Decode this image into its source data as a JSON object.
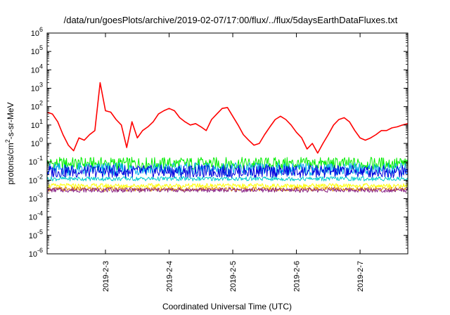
{
  "chart_data": {
    "type": "line",
    "title": "/data/run/goesPlots/archive/2019-02-07/17:00/flux/../flux/5daysEarthDataFluxes.txt",
    "xlabel": "Coordinated Universal Time (UTC)",
    "ylabel_parts": {
      "pre": "protons/cm",
      "sup": "2",
      "post": "-s-sr-MeV"
    },
    "yscale": "log",
    "ylim": [
      1e-06,
      1000000
    ],
    "xlim": [
      "2019-02-02 02:00",
      "2019-02-07 18:00"
    ],
    "grid": false,
    "legend": false,
    "x_ticks": [
      "2019-2-3",
      "2019-2-4",
      "2019-2-5",
      "2019-2-6",
      "2019-2-7"
    ],
    "y_ticks": [
      {
        "value": 1e-06,
        "base": "10",
        "exp": "-6"
      },
      {
        "value": 1e-05,
        "base": "10",
        "exp": "-5"
      },
      {
        "value": 0.0001,
        "base": "10",
        "exp": "-4"
      },
      {
        "value": 0.001,
        "base": "10",
        "exp": "-3"
      },
      {
        "value": 0.01,
        "base": "10",
        "exp": "-2"
      },
      {
        "value": 0.1,
        "base": "10",
        "exp": "-1"
      },
      {
        "value": 1,
        "base": "10",
        "exp": "0"
      },
      {
        "value": 10,
        "base": "10",
        "exp": "1"
      },
      {
        "value": 100,
        "base": "10",
        "exp": "2"
      },
      {
        "value": 1000,
        "base": "10",
        "exp": "3"
      },
      {
        "value": 10000,
        "base": "10",
        "exp": "4"
      },
      {
        "value": 100000,
        "base": "10",
        "exp": "5"
      },
      {
        "value": 1000000,
        "base": "10",
        "exp": "6"
      }
    ],
    "series": [
      {
        "color": "#ff0000",
        "x": [
          "2019-02-02 02:00",
          "2019-02-02 04:00",
          "2019-02-02 06:00",
          "2019-02-02 08:00",
          "2019-02-02 10:00",
          "2019-02-02 12:00",
          "2019-02-02 14:00",
          "2019-02-02 16:00",
          "2019-02-02 18:00",
          "2019-02-02 20:00",
          "2019-02-02 22:00",
          "2019-02-03 00:00",
          "2019-02-03 02:00",
          "2019-02-03 04:00",
          "2019-02-03 06:00",
          "2019-02-03 08:00",
          "2019-02-03 10:00",
          "2019-02-03 12:00",
          "2019-02-03 14:00",
          "2019-02-03 16:00",
          "2019-02-03 18:00",
          "2019-02-03 20:00",
          "2019-02-03 22:00",
          "2019-02-04 00:00",
          "2019-02-04 02:00",
          "2019-02-04 04:00",
          "2019-02-04 06:00",
          "2019-02-04 08:00",
          "2019-02-04 10:00",
          "2019-02-04 12:00",
          "2019-02-04 14:00",
          "2019-02-04 16:00",
          "2019-02-04 18:00",
          "2019-02-04 20:00",
          "2019-02-04 22:00",
          "2019-02-05 00:00",
          "2019-02-05 02:00",
          "2019-02-05 04:00",
          "2019-02-05 06:00",
          "2019-02-05 08:00",
          "2019-02-05 10:00",
          "2019-02-05 12:00",
          "2019-02-05 14:00",
          "2019-02-05 16:00",
          "2019-02-05 18:00",
          "2019-02-05 20:00",
          "2019-02-05 22:00",
          "2019-02-06 00:00",
          "2019-02-06 02:00",
          "2019-02-06 04:00",
          "2019-02-06 06:00",
          "2019-02-06 08:00",
          "2019-02-06 10:00",
          "2019-02-06 12:00",
          "2019-02-06 14:00",
          "2019-02-06 16:00",
          "2019-02-06 18:00",
          "2019-02-06 20:00",
          "2019-02-06 22:00",
          "2019-02-07 00:00",
          "2019-02-07 02:00",
          "2019-02-07 04:00",
          "2019-02-07 06:00",
          "2019-02-07 08:00",
          "2019-02-07 10:00",
          "2019-02-07 12:00",
          "2019-02-07 14:00",
          "2019-02-07 16:00",
          "2019-02-07 18:00"
        ],
        "y": [
          50,
          40,
          15,
          3,
          0.8,
          0.4,
          2,
          1.5,
          3,
          5,
          2000,
          60,
          50,
          20,
          10,
          0.6,
          15,
          2,
          5,
          8,
          15,
          40,
          60,
          80,
          60,
          25,
          15,
          10,
          12,
          8,
          5,
          20,
          40,
          80,
          90,
          30,
          10,
          3,
          1.5,
          0.8,
          1,
          3,
          8,
          20,
          30,
          20,
          10,
          4,
          2,
          0.5,
          1,
          0.3,
          1,
          3,
          10,
          20,
          25,
          15,
          5,
          2,
          1.5,
          2,
          3,
          5,
          5,
          7,
          8,
          10,
          12
        ]
      },
      {
        "color": "#00ee00",
        "x": [
          "2019-02-02 02:00",
          "2019-02-07 18:00"
        ],
        "y": [
          0.08,
          0.08
        ]
      },
      {
        "color": "#00aaee",
        "x": [
          "2019-02-02 02:00",
          "2019-02-07 18:00"
        ],
        "y": [
          0.04,
          0.04
        ]
      },
      {
        "color": "#0000dd",
        "x": [
          "2019-02-02 02:00",
          "2019-02-07 18:00"
        ],
        "y": [
          0.03,
          0.03
        ]
      },
      {
        "color": "#00cccc",
        "x": [
          "2019-02-02 02:00",
          "2019-02-07 18:00"
        ],
        "y": [
          0.012,
          0.012
        ]
      },
      {
        "color": "#ffff00",
        "x": [
          "2019-02-02 02:00",
          "2019-02-07 18:00"
        ],
        "y": [
          0.005,
          0.005
        ]
      },
      {
        "color": "#dd8800",
        "x": [
          "2019-02-02 02:00",
          "2019-02-07 18:00"
        ],
        "y": [
          0.0033,
          0.0033
        ]
      },
      {
        "color": "#882288",
        "x": [
          "2019-02-02 02:00",
          "2019-02-07 18:00"
        ],
        "y": [
          0.0029,
          0.0029
        ]
      }
    ]
  }
}
